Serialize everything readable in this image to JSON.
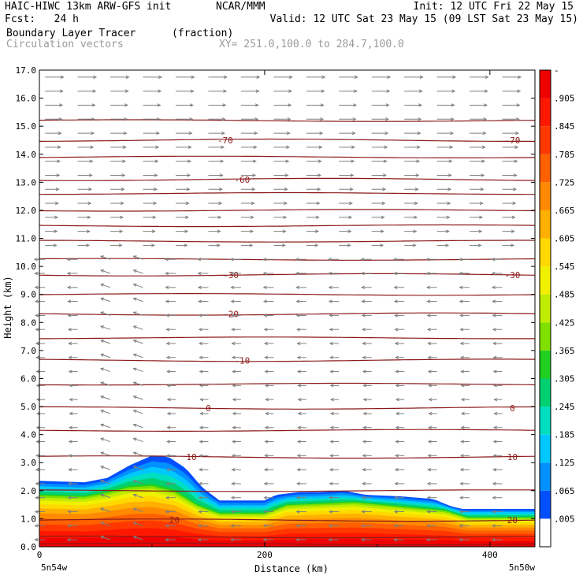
{
  "header": {
    "model": "HAIC-HIWC 13km ARW-GFS init",
    "org": "NCAR/MMM",
    "init": "Init: 12 UTC Fri 22 May 15",
    "fcst": "Fcst:   24 h",
    "valid": "Valid: 12 UTC Sat 23 May 15 (09 LST Sat 23 May 15)",
    "field": "Boundary Layer Tracer",
    "field_units": "(fraction)",
    "vectors": "Circulation vectors",
    "xy": "XY= 251.0,100.0 to 284.7,100.0"
  },
  "colors": {
    "contour": "#8b1a1a",
    "vector": "#7f7f7f",
    "colorbar": [
      "#ffffff",
      "#0050ff",
      "#0090ff",
      "#00c8ff",
      "#00e0c0",
      "#00d070",
      "#20d020",
      "#80e000",
      "#c0ec00",
      "#f0f000",
      "#ffd800",
      "#ffb000",
      "#ff8a00",
      "#ff6000",
      "#ff3800",
      "#ff1800",
      "#f00000"
    ]
  },
  "chart_data": {
    "type": "heatmap",
    "title": "Boundary Layer Tracer",
    "xlabel": "Distance (km)",
    "ylabel": "Height (km)",
    "xlim": [
      0,
      440
    ],
    "ylim": [
      0,
      17
    ],
    "x_ticks": [
      "0",
      "200",
      "400"
    ],
    "y_ticks": [
      "0.0",
      "1.0",
      "2.0",
      "3.0",
      "4.0",
      "5.0",
      "6.0",
      "7.0",
      "8.0",
      "9.0",
      "10.0",
      "11.0",
      "12.0",
      "13.0",
      "14.0",
      "15.0",
      "16.0",
      "17.0"
    ],
    "endpoints": {
      "left": "5n54w",
      "right": "5n50w"
    },
    "colorbar_labels": [
      ".005",
      ".065",
      ".125",
      ".185",
      ".245",
      ".305",
      ".365",
      ".425",
      ".485",
      ".545",
      ".605",
      ".665",
      ".725",
      ".785",
      ".845",
      ".905",
      "-"
    ],
    "tracer_top": {
      "x": [
        0,
        40,
        60,
        80,
        100,
        115,
        130,
        145,
        160,
        200,
        210,
        230,
        250,
        270,
        290,
        320,
        350,
        365,
        375,
        400,
        440
      ],
      "top": [
        2.35,
        2.3,
        2.45,
        2.9,
        3.25,
        3.2,
        2.8,
        2.1,
        1.65,
        1.65,
        1.85,
        1.95,
        1.95,
        2.0,
        1.85,
        1.8,
        1.7,
        1.45,
        1.35,
        1.35,
        1.35
      ]
    },
    "tracer_high_top": {
      "x": [
        0,
        40,
        60,
        80,
        100,
        120,
        140,
        160,
        200,
        220,
        250,
        280,
        320,
        360,
        380,
        440
      ],
      "top": [
        1.85,
        1.8,
        1.95,
        2.15,
        2.2,
        2.0,
        1.5,
        1.2,
        1.2,
        1.5,
        1.55,
        1.6,
        1.45,
        1.3,
        1.05,
        1.05
      ]
    },
    "contours": [
      {
        "level": "20",
        "y": 0.95,
        "label_x": [
          120,
          420
        ]
      },
      {
        "level": "10",
        "y": 3.2,
        "label_x": [
          135,
          420
        ]
      },
      {
        "level": "0",
        "y": 4.95,
        "label_x": [
          150,
          420
        ]
      },
      {
        "level": "-10",
        "y": 6.65,
        "label_x": [
          180
        ]
      },
      {
        "level": "-20",
        "y": 8.3,
        "label_x": [
          170
        ]
      },
      {
        "level": "-30",
        "y": 9.7,
        "label_x": [
          170,
          420
        ]
      },
      {
        "level": "-60",
        "y": 13.1,
        "label_x": [
          180
        ]
      },
      {
        "level": "-70",
        "y": 14.5,
        "label_x": [
          165,
          420
        ]
      }
    ],
    "contour_lines_unlabeled": [
      0.1,
      0.35,
      2.0,
      4.15,
      5.8,
      7.45,
      9.0,
      10.25,
      10.9,
      11.45,
      12.0,
      12.6,
      13.9,
      15.2
    ]
  }
}
